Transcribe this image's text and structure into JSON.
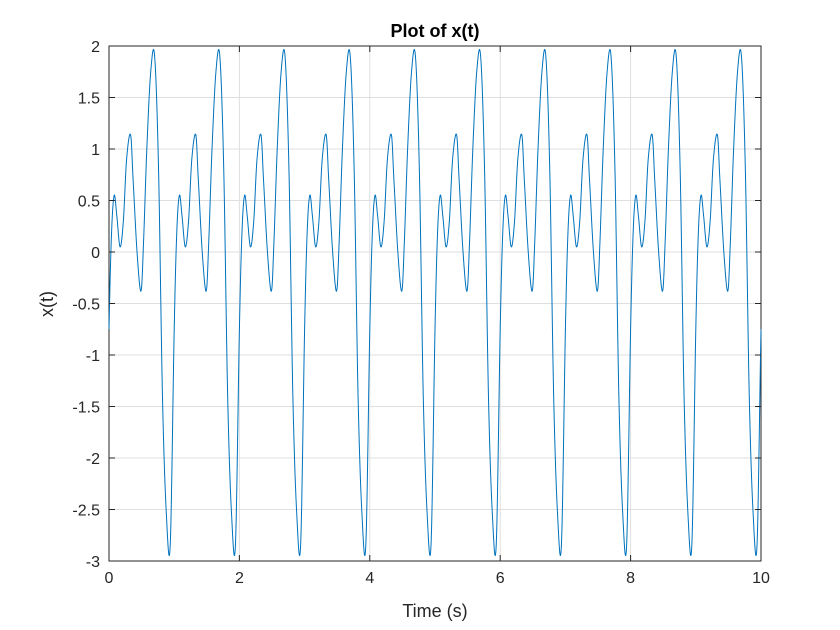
{
  "chart_data": {
    "type": "line",
    "title": "Plot of x(t)",
    "xlabel": "Time (s)",
    "ylabel": "x(t)",
    "xlim": [
      0,
      10
    ],
    "ylim": [
      -3,
      2
    ],
    "grid": true,
    "x_ticks": [
      0,
      2,
      4,
      6,
      8,
      10
    ],
    "y_ticks": [
      -3,
      -2.5,
      -2,
      -1.5,
      -1,
      -0.5,
      0,
      0.5,
      1,
      1.5,
      2
    ],
    "x_tick_labels": [
      "0",
      "2",
      "4",
      "6",
      "8",
      "10"
    ],
    "y_tick_labels": [
      "-3",
      "-2.5",
      "-2",
      "-1.5",
      "-1",
      "-0.5",
      "0",
      "0.5",
      "1",
      "1.5",
      "2"
    ],
    "line_color": "#0072BD",
    "series": [
      {
        "t_start": 0,
        "t_end": 10,
        "period": 1,
        "period_shape": {
          "t": [
            0.0,
            0.04,
            0.08,
            0.12,
            0.17,
            0.22,
            0.27,
            0.33,
            0.37,
            0.43,
            0.49,
            0.53,
            0.58,
            0.64,
            0.7,
            0.76,
            0.82,
            0.88,
            0.94,
            1.0
          ],
          "x": [
            -0.75,
            0.2,
            0.55,
            0.35,
            0.05,
            0.3,
            0.9,
            1.14,
            0.7,
            0.0,
            -0.38,
            0.1,
            1.0,
            1.75,
            1.9,
            0.8,
            -1.4,
            -2.55,
            -2.83,
            -0.75
          ]
        }
      }
    ]
  }
}
